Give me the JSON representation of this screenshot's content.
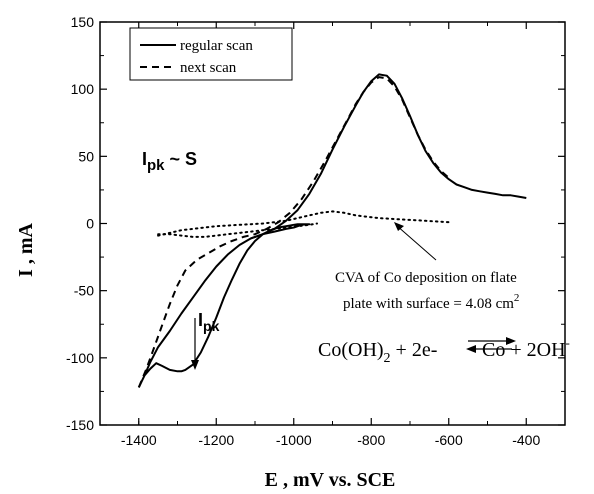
{
  "chart_data": {
    "type": "line",
    "title": "",
    "xlabel": "E ,  mV vs. SCE",
    "ylabel": "I ,  mA",
    "xlim": [
      -1500,
      -300
    ],
    "ylim": [
      -150,
      150
    ],
    "xticks": [
      -1400,
      -1200,
      -1000,
      -800,
      -600,
      -400
    ],
    "yticks": [
      -150,
      -100,
      -50,
      0,
      50,
      100,
      150
    ],
    "grid": false,
    "legend_position": "top-left",
    "series": [
      {
        "name": "regular scan",
        "style": "solid",
        "color": "#000000",
        "x": [
          -1400,
          -1385,
          -1370,
          -1355,
          -1340,
          -1320,
          -1300,
          -1290,
          -1280,
          -1260,
          -1240,
          -1220,
          -1200,
          -1180,
          -1160,
          -1140,
          -1120,
          -1100,
          -1080,
          -1060,
          -1040,
          -1020,
          -1000,
          -990,
          -980,
          -970,
          -960,
          -960,
          -980,
          -1000,
          -1020,
          -1050,
          -1080,
          -1110,
          -1140,
          -1170,
          -1200,
          -1230,
          -1260,
          -1290,
          -1320,
          -1350,
          -1370,
          -1385,
          -1400
        ],
        "y": [
          -122,
          -113,
          -108,
          -104,
          -106,
          -109,
          -110,
          -110,
          -109,
          -105,
          -96,
          -84,
          -70,
          -55,
          -42,
          -30,
          -20,
          -13,
          -8,
          -5,
          -3,
          -2,
          -1,
          -0.5,
          -0.5,
          -0.5,
          -0.5,
          -0.5,
          -1,
          -3,
          -4,
          -6,
          -8,
          -11,
          -16,
          -23,
          -32,
          -43,
          -55,
          -67,
          -80,
          -92,
          -103,
          -113,
          -122
        ]
      },
      {
        "name": "regular scan",
        "style": "solid",
        "color": "#000000",
        "x": [
          -1110,
          -1080,
          -1050,
          -1020,
          -990,
          -960,
          -930,
          -900,
          -870,
          -840,
          -820,
          -800,
          -780,
          -760,
          -740,
          -720,
          -700,
          -680,
          -660,
          -640,
          -620,
          -600,
          -580,
          -560,
          -540,
          -520,
          -500,
          -480,
          -460,
          -440,
          -420,
          -400
        ],
        "y": [
          -11,
          -8,
          -4,
          2,
          10,
          22,
          37,
          55,
          72,
          88,
          98,
          106,
          111,
          110,
          104,
          93,
          80,
          66,
          54,
          45,
          38,
          33,
          29,
          27,
          25,
          24,
          23,
          22,
          21,
          21,
          20,
          19
        ]
      },
      {
        "name": "next scan",
        "style": "dashed",
        "color": "#000000",
        "x": [
          -1400,
          -1380,
          -1360,
          -1340,
          -1320,
          -1300,
          -1280,
          -1250,
          -1220,
          -1190,
          -1160,
          -1130,
          -1100,
          -1070,
          -1040,
          -1010,
          -980,
          -950,
          -920,
          -890,
          -860,
          -840,
          -820,
          -800,
          -780,
          -760,
          -740,
          -720,
          -700,
          -680,
          -660,
          -640,
          -620,
          -600
        ],
        "y": [
          -122,
          -108,
          -92,
          -76,
          -60,
          -46,
          -35,
          -27,
          -22,
          -17,
          -13,
          -10,
          -8,
          -4,
          1,
          8,
          18,
          31,
          46,
          62,
          78,
          89,
          98,
          105,
          109,
          108,
          102,
          92,
          79,
          66,
          55,
          46,
          39,
          34
        ]
      },
      {
        "name": "CVA of Co deposition on flate plate with surface = 4.08 cm2",
        "style": "dotted",
        "color": "#000000",
        "x": [
          -1350,
          -1320,
          -1290,
          -1260,
          -1230,
          -1200,
          -1170,
          -1140,
          -1110,
          -1080,
          -1050,
          -1020,
          -990,
          -960,
          -930,
          -900,
          -870,
          -840,
          -810,
          -780,
          -750,
          -720,
          -690,
          -660,
          -630,
          -600
        ],
        "y": [
          -9,
          -7,
          -5,
          -4,
          -3,
          -2,
          -1.5,
          -1,
          -0.5,
          0,
          1,
          2,
          4,
          6,
          8,
          9,
          8,
          6,
          5,
          4,
          3.5,
          3,
          2.5,
          2,
          1.5,
          1
        ]
      },
      {
        "name": "CVA of Co deposition on flate plate with surface = 4.08 cm2",
        "style": "dotted",
        "color": "#000000",
        "x": [
          -1350,
          -1320,
          -1290,
          -1260,
          -1230,
          -1200,
          -1170,
          -1140,
          -1110,
          -1080,
          -1050,
          -1020,
          -990,
          -960,
          -940
        ],
        "y": [
          -8,
          -8,
          -9,
          -10,
          -10,
          -9,
          -8,
          -7,
          -6,
          -5,
          -4,
          -3,
          -2,
          -1,
          0
        ]
      }
    ],
    "legend": [
      {
        "label": "regular scan",
        "style": "solid"
      },
      {
        "label": "next scan",
        "style": "dashed"
      }
    ],
    "annotations": {
      "ipk_sub": "I",
      "ipk_sub_suffix": "pk",
      "ipk_relation": " ~ S",
      "ipk_marker": "I",
      "ipk_marker_suffix": "pk",
      "cva_line1": "CVA of Co deposition on flate",
      "cva_line2": "plate with surface = 4.08 cm",
      "cva_sup": "2",
      "reaction_left": "Co(OH)",
      "reaction_sub": "2",
      "reaction_mid": " + 2e-",
      "reaction_right": "Co + 2OH",
      "reaction_sup": "-"
    }
  }
}
